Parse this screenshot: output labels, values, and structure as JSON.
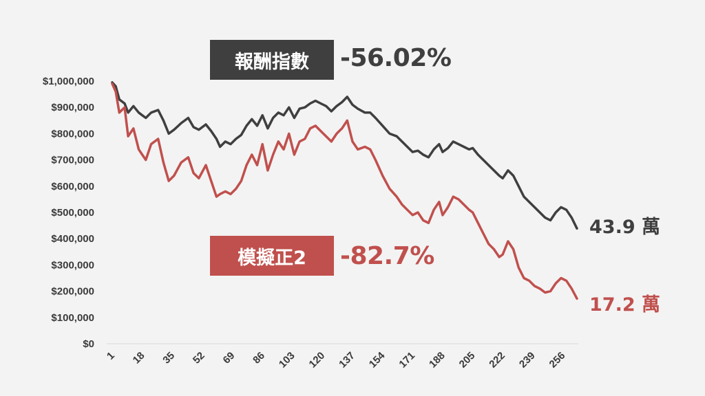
{
  "colors": {
    "series1": "#3f3f3f",
    "series2": "#c0504d",
    "axis": "#d9d9d9",
    "text": "#3a3a3a",
    "background": "#f3f3f3"
  },
  "labels": {
    "s1_box": "報酬指數",
    "s1_pct": "-56.02%",
    "s1_end": "43.9 萬",
    "s2_box": "模擬正2",
    "s2_pct": "-82.7%",
    "s2_end": "17.2 萬"
  },
  "chart_data": {
    "type": "line",
    "ylim": [
      0,
      1000000
    ],
    "yticks": [
      "$0",
      "$100,000",
      "$200,000",
      "$300,000",
      "$400,000",
      "$500,000",
      "$600,000",
      "$700,000",
      "$800,000",
      "$900,000",
      "$1,000,000"
    ],
    "xlim": [
      1,
      264
    ],
    "xticks": [
      "1",
      "18",
      "35",
      "52",
      "69",
      "86",
      "103",
      "120",
      "137",
      "154",
      "171",
      "188",
      "205",
      "222",
      "239",
      "256"
    ],
    "legend": "none",
    "grid": false,
    "series": [
      {
        "name": "報酬指數",
        "points": [
          [
            1,
            995000
          ],
          [
            3,
            980000
          ],
          [
            5,
            930000
          ],
          [
            8,
            915000
          ],
          [
            10,
            880000
          ],
          [
            13,
            905000
          ],
          [
            16,
            880000
          ],
          [
            18,
            870000
          ],
          [
            20,
            860000
          ],
          [
            23,
            880000
          ],
          [
            27,
            890000
          ],
          [
            30,
            850000
          ],
          [
            33,
            800000
          ],
          [
            36,
            815000
          ],
          [
            40,
            840000
          ],
          [
            44,
            860000
          ],
          [
            47,
            825000
          ],
          [
            50,
            815000
          ],
          [
            54,
            835000
          ],
          [
            57,
            810000
          ],
          [
            60,
            780000
          ],
          [
            62,
            750000
          ],
          [
            65,
            770000
          ],
          [
            68,
            760000
          ],
          [
            71,
            780000
          ],
          [
            74,
            795000
          ],
          [
            77,
            830000
          ],
          [
            80,
            855000
          ],
          [
            83,
            830000
          ],
          [
            86,
            870000
          ],
          [
            89,
            820000
          ],
          [
            92,
            860000
          ],
          [
            95,
            880000
          ],
          [
            98,
            870000
          ],
          [
            101,
            900000
          ],
          [
            104,
            860000
          ],
          [
            107,
            895000
          ],
          [
            110,
            900000
          ],
          [
            113,
            915000
          ],
          [
            116,
            925000
          ],
          [
            119,
            915000
          ],
          [
            122,
            905000
          ],
          [
            125,
            885000
          ],
          [
            128,
            905000
          ],
          [
            131,
            920000
          ],
          [
            134,
            940000
          ],
          [
            137,
            910000
          ],
          [
            140,
            895000
          ],
          [
            144,
            880000
          ],
          [
            147,
            880000
          ],
          [
            150,
            860000
          ],
          [
            154,
            830000
          ],
          [
            158,
            800000
          ],
          [
            162,
            790000
          ],
          [
            165,
            770000
          ],
          [
            168,
            750000
          ],
          [
            171,
            730000
          ],
          [
            174,
            735000
          ],
          [
            177,
            720000
          ],
          [
            180,
            710000
          ],
          [
            183,
            740000
          ],
          [
            186,
            760000
          ],
          [
            188,
            730000
          ],
          [
            191,
            745000
          ],
          [
            194,
            770000
          ],
          [
            197,
            760000
          ],
          [
            200,
            750000
          ],
          [
            203,
            740000
          ],
          [
            205,
            745000
          ],
          [
            208,
            720000
          ],
          [
            211,
            700000
          ],
          [
            214,
            680000
          ],
          [
            217,
            660000
          ],
          [
            220,
            640000
          ],
          [
            222,
            630000
          ],
          [
            225,
            660000
          ],
          [
            228,
            640000
          ],
          [
            231,
            600000
          ],
          [
            234,
            560000
          ],
          [
            237,
            540000
          ],
          [
            240,
            520000
          ],
          [
            243,
            500000
          ],
          [
            246,
            480000
          ],
          [
            249,
            470000
          ],
          [
            252,
            500000
          ],
          [
            255,
            520000
          ],
          [
            258,
            510000
          ],
          [
            261,
            480000
          ],
          [
            264,
            439000
          ]
        ]
      },
      {
        "name": "模擬正2",
        "points": [
          [
            1,
            990000
          ],
          [
            3,
            960000
          ],
          [
            5,
            880000
          ],
          [
            8,
            900000
          ],
          [
            10,
            790000
          ],
          [
            13,
            820000
          ],
          [
            16,
            740000
          ],
          [
            18,
            720000
          ],
          [
            20,
            700000
          ],
          [
            23,
            760000
          ],
          [
            27,
            780000
          ],
          [
            30,
            690000
          ],
          [
            33,
            620000
          ],
          [
            36,
            640000
          ],
          [
            40,
            690000
          ],
          [
            44,
            710000
          ],
          [
            47,
            650000
          ],
          [
            50,
            630000
          ],
          [
            54,
            680000
          ],
          [
            57,
            620000
          ],
          [
            60,
            560000
          ],
          [
            62,
            570000
          ],
          [
            65,
            580000
          ],
          [
            68,
            570000
          ],
          [
            71,
            590000
          ],
          [
            74,
            620000
          ],
          [
            77,
            680000
          ],
          [
            80,
            720000
          ],
          [
            83,
            680000
          ],
          [
            86,
            760000
          ],
          [
            89,
            660000
          ],
          [
            92,
            720000
          ],
          [
            95,
            770000
          ],
          [
            98,
            740000
          ],
          [
            101,
            800000
          ],
          [
            104,
            720000
          ],
          [
            107,
            770000
          ],
          [
            110,
            780000
          ],
          [
            113,
            820000
          ],
          [
            116,
            830000
          ],
          [
            119,
            810000
          ],
          [
            122,
            790000
          ],
          [
            125,
            770000
          ],
          [
            128,
            800000
          ],
          [
            131,
            820000
          ],
          [
            134,
            850000
          ],
          [
            137,
            770000
          ],
          [
            140,
            740000
          ],
          [
            144,
            750000
          ],
          [
            147,
            740000
          ],
          [
            150,
            700000
          ],
          [
            154,
            640000
          ],
          [
            158,
            590000
          ],
          [
            162,
            560000
          ],
          [
            165,
            530000
          ],
          [
            168,
            510000
          ],
          [
            171,
            490000
          ],
          [
            174,
            500000
          ],
          [
            177,
            470000
          ],
          [
            180,
            460000
          ],
          [
            183,
            510000
          ],
          [
            186,
            540000
          ],
          [
            188,
            490000
          ],
          [
            191,
            520000
          ],
          [
            194,
            560000
          ],
          [
            197,
            550000
          ],
          [
            200,
            530000
          ],
          [
            203,
            510000
          ],
          [
            205,
            500000
          ],
          [
            208,
            460000
          ],
          [
            211,
            420000
          ],
          [
            214,
            380000
          ],
          [
            217,
            360000
          ],
          [
            220,
            330000
          ],
          [
            222,
            340000
          ],
          [
            225,
            390000
          ],
          [
            228,
            360000
          ],
          [
            231,
            290000
          ],
          [
            234,
            250000
          ],
          [
            237,
            240000
          ],
          [
            240,
            220000
          ],
          [
            243,
            210000
          ],
          [
            246,
            195000
          ],
          [
            249,
            200000
          ],
          [
            252,
            230000
          ],
          [
            255,
            250000
          ],
          [
            258,
            240000
          ],
          [
            261,
            210000
          ],
          [
            264,
            172000
          ]
        ]
      }
    ]
  }
}
